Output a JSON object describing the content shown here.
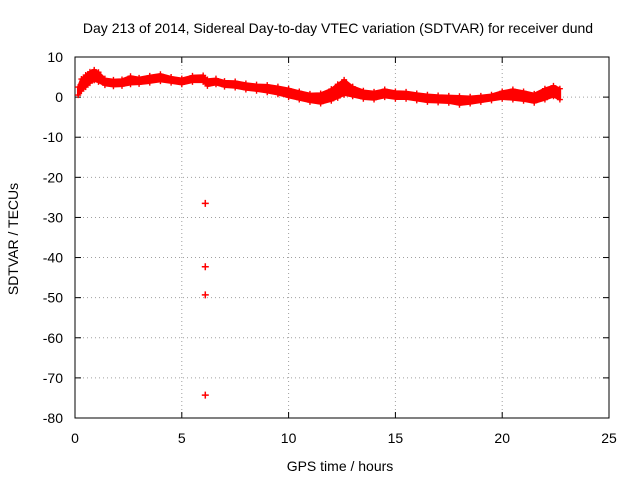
{
  "chart_data": {
    "type": "scatter",
    "title": "Day 213 of 2014, Sidereal Day-to-day VTEC variation (SDTVAR) for receiver dund",
    "xlabel": "GPS time / hours",
    "ylabel": "SDTVAR / TECUs",
    "xlim": [
      0,
      25
    ],
    "ylim": [
      -80,
      10
    ],
    "xticks": [
      0,
      5,
      10,
      15,
      20,
      25
    ],
    "yticks": [
      10,
      0,
      -10,
      -20,
      -30,
      -40,
      -50,
      -60,
      -70,
      -80
    ],
    "grid": true,
    "marker": "plus",
    "series": [
      {
        "name": "SDTVAR",
        "color": "#ff0000",
        "band": [
          {
            "x": 0.15,
            "lo": 0.5,
            "hi": 2.5
          },
          {
            "x": 0.3,
            "lo": 1.5,
            "hi": 4.5
          },
          {
            "x": 0.5,
            "lo": 2.5,
            "hi": 5.5
          },
          {
            "x": 0.7,
            "lo": 3.5,
            "hi": 6.3
          },
          {
            "x": 0.9,
            "lo": 4.2,
            "hi": 6.8
          },
          {
            "x": 1.1,
            "lo": 3.8,
            "hi": 6.2
          },
          {
            "x": 1.4,
            "lo": 3.0,
            "hi": 4.6
          },
          {
            "x": 1.8,
            "lo": 2.7,
            "hi": 4.3
          },
          {
            "x": 2.2,
            "lo": 2.8,
            "hi": 4.4
          },
          {
            "x": 2.6,
            "lo": 3.2,
            "hi": 5.2
          },
          {
            "x": 3.0,
            "lo": 3.3,
            "hi": 4.8
          },
          {
            "x": 3.5,
            "lo": 3.6,
            "hi": 5.3
          },
          {
            "x": 4.0,
            "lo": 4.0,
            "hi": 5.7
          },
          {
            "x": 4.5,
            "lo": 3.6,
            "hi": 5.0
          },
          {
            "x": 5.0,
            "lo": 3.2,
            "hi": 4.6
          },
          {
            "x": 5.5,
            "lo": 3.8,
            "hi": 5.3
          },
          {
            "x": 6.0,
            "lo": 3.8,
            "hi": 5.4
          },
          {
            "x": 6.2,
            "lo": 2.8,
            "hi": 4.4
          },
          {
            "x": 6.6,
            "lo": 3.2,
            "hi": 4.6
          },
          {
            "x": 7.0,
            "lo": 2.6,
            "hi": 4.0
          },
          {
            "x": 7.5,
            "lo": 2.4,
            "hi": 3.9
          },
          {
            "x": 8.0,
            "lo": 1.9,
            "hi": 3.4
          },
          {
            "x": 8.5,
            "lo": 1.6,
            "hi": 3.1
          },
          {
            "x": 9.0,
            "lo": 1.2,
            "hi": 3.0
          },
          {
            "x": 9.5,
            "lo": 0.7,
            "hi": 2.6
          },
          {
            "x": 10.0,
            "lo": 0.0,
            "hi": 2.1
          },
          {
            "x": 10.5,
            "lo": -0.6,
            "hi": 1.4
          },
          {
            "x": 11.0,
            "lo": -1.2,
            "hi": 0.8
          },
          {
            "x": 11.5,
            "lo": -1.6,
            "hi": 0.9
          },
          {
            "x": 12.0,
            "lo": -0.9,
            "hi": 2.0
          },
          {
            "x": 12.3,
            "lo": -0.2,
            "hi": 3.2
          },
          {
            "x": 12.6,
            "lo": 0.6,
            "hi": 4.3
          },
          {
            "x": 13.0,
            "lo": 0.2,
            "hi": 2.6
          },
          {
            "x": 13.5,
            "lo": -0.4,
            "hi": 1.6
          },
          {
            "x": 14.0,
            "lo": -0.6,
            "hi": 1.3
          },
          {
            "x": 14.5,
            "lo": 0.0,
            "hi": 1.9
          },
          {
            "x": 15.0,
            "lo": -0.4,
            "hi": 1.4
          },
          {
            "x": 15.5,
            "lo": -0.4,
            "hi": 1.3
          },
          {
            "x": 16.0,
            "lo": -0.8,
            "hi": 0.9
          },
          {
            "x": 16.5,
            "lo": -1.2,
            "hi": 0.6
          },
          {
            "x": 17.0,
            "lo": -1.3,
            "hi": 0.4
          },
          {
            "x": 17.5,
            "lo": -1.4,
            "hi": 0.3
          },
          {
            "x": 18.0,
            "lo": -1.9,
            "hi": 0.2
          },
          {
            "x": 18.5,
            "lo": -1.6,
            "hi": 0.1
          },
          {
            "x": 19.0,
            "lo": -1.2,
            "hi": 0.3
          },
          {
            "x": 19.5,
            "lo": -0.8,
            "hi": 0.6
          },
          {
            "x": 20.0,
            "lo": -0.4,
            "hi": 1.4
          },
          {
            "x": 20.5,
            "lo": -0.6,
            "hi": 1.9
          },
          {
            "x": 21.0,
            "lo": -0.9,
            "hi": 1.4
          },
          {
            "x": 21.5,
            "lo": -1.4,
            "hi": 0.8
          },
          {
            "x": 22.0,
            "lo": -0.6,
            "hi": 2.1
          },
          {
            "x": 22.4,
            "lo": 0.2,
            "hi": 2.8
          },
          {
            "x": 22.7,
            "lo": -0.6,
            "hi": 2.1
          }
        ],
        "outliers": [
          {
            "x": 6.1,
            "y": -26.5
          },
          {
            "x": 6.1,
            "y": -42.3
          },
          {
            "x": 6.1,
            "y": -49.3
          },
          {
            "x": 6.1,
            "y": -74.3
          }
        ]
      }
    ]
  }
}
